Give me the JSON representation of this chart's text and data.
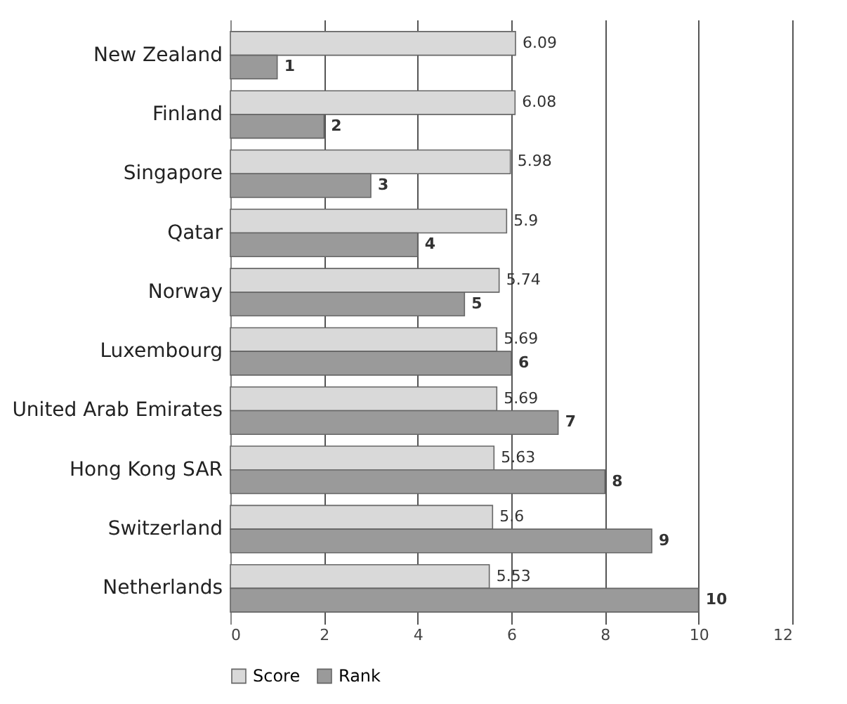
{
  "chart_data": {
    "type": "bar",
    "orientation": "horizontal",
    "categories": [
      "New Zealand",
      "Finland",
      "Singapore",
      "Qatar",
      "Norway",
      "Luxembourg",
      "United Arab Emirates",
      "Hong Kong SAR",
      "Switzerland",
      "Netherlands"
    ],
    "series": [
      {
        "name": "Score",
        "color": "#d9d9d9",
        "values": [
          6.09,
          6.08,
          5.98,
          5.9,
          5.74,
          5.69,
          5.69,
          5.63,
          5.6,
          5.53
        ]
      },
      {
        "name": "Rank",
        "color": "#9a9a9a",
        "values": [
          1,
          2,
          3,
          4,
          5,
          6,
          7,
          8,
          9,
          10
        ]
      }
    ],
    "xlim": [
      0,
      12
    ],
    "xticks": [
      0,
      2,
      4,
      6,
      8,
      10,
      12
    ],
    "grid": "x",
    "legend": "bottom",
    "data_labels": true
  }
}
